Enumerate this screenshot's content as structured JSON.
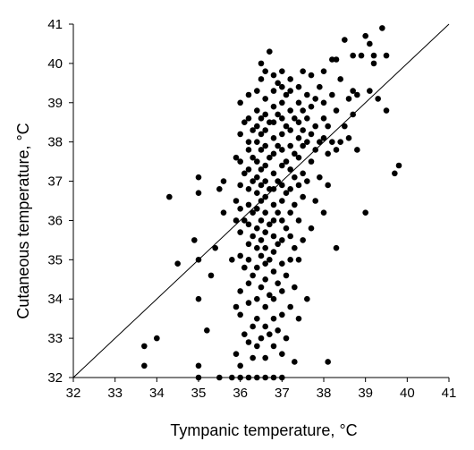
{
  "chart_data": {
    "type": "scatter",
    "title": "",
    "xlabel": "Tympanic temperature, °C",
    "ylabel": "Cutaneous temperature, °C",
    "xlim": [
      32,
      41
    ],
    "ylim": [
      32,
      41
    ],
    "x_ticks": [
      "32",
      "33",
      "34",
      "35",
      "36",
      "37",
      "38",
      "39",
      "40",
      "41"
    ],
    "y_ticks": [
      "32",
      "33",
      "34",
      "35",
      "36",
      "37",
      "38",
      "39",
      "40",
      "41"
    ],
    "grid": false,
    "legend": "none",
    "reference_line": {
      "from": [
        32,
        32
      ],
      "to": [
        41,
        41
      ]
    },
    "marker_color": "#000000",
    "series": [
      {
        "points": [
          [
            33.7,
            32.8
          ],
          [
            33.7,
            32.3
          ],
          [
            34.0,
            33.0
          ],
          [
            34.3,
            36.6
          ],
          [
            34.5,
            34.9
          ],
          [
            35.0,
            32.0
          ],
          [
            35.0,
            32.3
          ],
          [
            35.0,
            34.0
          ],
          [
            35.0,
            35.0
          ],
          [
            35.0,
            37.1
          ],
          [
            35.0,
            36.7
          ],
          [
            34.9,
            35.5
          ],
          [
            35.2,
            33.2
          ],
          [
            35.3,
            34.6
          ],
          [
            35.4,
            35.3
          ],
          [
            35.5,
            36.8
          ],
          [
            35.5,
            32.0
          ],
          [
            35.6,
            36.2
          ],
          [
            35.6,
            37.0
          ],
          [
            35.8,
            32.0
          ],
          [
            35.8,
            35.0
          ],
          [
            35.9,
            36.0
          ],
          [
            35.9,
            36.5
          ],
          [
            35.9,
            37.6
          ],
          [
            35.9,
            33.8
          ],
          [
            35.9,
            32.6
          ],
          [
            36.0,
            32.0
          ],
          [
            36.0,
            32.3
          ],
          [
            36.0,
            33.6
          ],
          [
            36.0,
            34.2
          ],
          [
            36.0,
            35.1
          ],
          [
            36.0,
            35.7
          ],
          [
            36.0,
            36.3
          ],
          [
            36.0,
            36.9
          ],
          [
            36.0,
            37.5
          ],
          [
            36.0,
            38.2
          ],
          [
            36.0,
            39.0
          ],
          [
            36.1,
            34.8
          ],
          [
            36.1,
            36.0
          ],
          [
            36.1,
            37.2
          ],
          [
            36.1,
            38.5
          ],
          [
            36.1,
            33.1
          ],
          [
            36.2,
            32.0
          ],
          [
            36.2,
            32.9
          ],
          [
            36.2,
            33.9
          ],
          [
            36.2,
            34.4
          ],
          [
            36.2,
            35.0
          ],
          [
            36.2,
            35.4
          ],
          [
            36.2,
            35.9
          ],
          [
            36.2,
            36.4
          ],
          [
            36.2,
            36.8
          ],
          [
            36.2,
            37.3
          ],
          [
            36.2,
            37.8
          ],
          [
            36.2,
            38.0
          ],
          [
            36.2,
            38.6
          ],
          [
            36.2,
            39.2
          ],
          [
            36.3,
            33.3
          ],
          [
            36.3,
            34.6
          ],
          [
            36.3,
            35.6
          ],
          [
            36.3,
            36.2
          ],
          [
            36.3,
            37.0
          ],
          [
            36.3,
            37.6
          ],
          [
            36.3,
            38.3
          ],
          [
            36.3,
            32.5
          ],
          [
            36.4,
            32.0
          ],
          [
            36.4,
            32.8
          ],
          [
            36.4,
            33.5
          ],
          [
            36.4,
            34.0
          ],
          [
            36.4,
            34.8
          ],
          [
            36.4,
            35.3
          ],
          [
            36.4,
            35.8
          ],
          [
            36.4,
            36.3
          ],
          [
            36.4,
            36.7
          ],
          [
            36.4,
            37.1
          ],
          [
            36.4,
            37.5
          ],
          [
            36.4,
            38.0
          ],
          [
            36.4,
            38.4
          ],
          [
            36.4,
            38.8
          ],
          [
            36.4,
            39.3
          ],
          [
            36.5,
            33.0
          ],
          [
            36.5,
            34.3
          ],
          [
            36.5,
            35.1
          ],
          [
            36.5,
            35.5
          ],
          [
            36.5,
            36.0
          ],
          [
            36.5,
            36.5
          ],
          [
            36.5,
            36.9
          ],
          [
            36.5,
            37.3
          ],
          [
            36.5,
            37.8
          ],
          [
            36.5,
            38.2
          ],
          [
            36.5,
            38.6
          ],
          [
            36.5,
            39.6
          ],
          [
            36.5,
            40.0
          ],
          [
            36.6,
            32.0
          ],
          [
            36.6,
            32.5
          ],
          [
            36.6,
            33.3
          ],
          [
            36.6,
            33.8
          ],
          [
            36.6,
            34.5
          ],
          [
            36.6,
            34.9
          ],
          [
            36.6,
            35.3
          ],
          [
            36.6,
            35.7
          ],
          [
            36.6,
            36.2
          ],
          [
            36.6,
            36.6
          ],
          [
            36.6,
            37.0
          ],
          [
            36.6,
            37.4
          ],
          [
            36.6,
            37.9
          ],
          [
            36.6,
            38.3
          ],
          [
            36.6,
            38.7
          ],
          [
            36.6,
            39.1
          ],
          [
            36.6,
            39.8
          ],
          [
            36.7,
            33.1
          ],
          [
            36.7,
            34.1
          ],
          [
            36.7,
            35.0
          ],
          [
            36.7,
            35.9
          ],
          [
            36.7,
            36.8
          ],
          [
            36.7,
            37.6
          ],
          [
            36.7,
            38.5
          ],
          [
            36.7,
            40.3
          ],
          [
            36.8,
            32.0
          ],
          [
            36.8,
            32.8
          ],
          [
            36.8,
            33.5
          ],
          [
            36.8,
            34.0
          ],
          [
            36.8,
            34.7
          ],
          [
            36.8,
            35.2
          ],
          [
            36.8,
            35.6
          ],
          [
            36.8,
            36.0
          ],
          [
            36.8,
            36.4
          ],
          [
            36.8,
            36.8
          ],
          [
            36.8,
            37.2
          ],
          [
            36.8,
            37.7
          ],
          [
            36.8,
            38.1
          ],
          [
            36.8,
            38.5
          ],
          [
            36.8,
            38.9
          ],
          [
            36.8,
            39.3
          ],
          [
            36.8,
            39.7
          ],
          [
            36.9,
            33.2
          ],
          [
            36.9,
            34.4
          ],
          [
            36.9,
            35.4
          ],
          [
            36.9,
            36.2
          ],
          [
            36.9,
            37.0
          ],
          [
            36.9,
            37.9
          ],
          [
            36.9,
            38.7
          ],
          [
            36.9,
            39.5
          ],
          [
            37.0,
            32.0
          ],
          [
            37.0,
            32.6
          ],
          [
            37.0,
            33.6
          ],
          [
            37.0,
            34.2
          ],
          [
            37.0,
            34.9
          ],
          [
            37.0,
            35.5
          ],
          [
            37.0,
            36.0
          ],
          [
            37.0,
            36.5
          ],
          [
            37.0,
            36.9
          ],
          [
            37.0,
            37.4
          ],
          [
            37.0,
            37.8
          ],
          [
            37.0,
            38.2
          ],
          [
            37.0,
            38.6
          ],
          [
            37.0,
            39.0
          ],
          [
            37.0,
            39.4
          ],
          [
            37.0,
            39.8
          ],
          [
            37.1,
            33.0
          ],
          [
            37.1,
            34.6
          ],
          [
            37.1,
            35.8
          ],
          [
            37.1,
            36.7
          ],
          [
            37.1,
            37.5
          ],
          [
            37.1,
            38.4
          ],
          [
            37.1,
            39.2
          ],
          [
            37.2,
            33.8
          ],
          [
            37.2,
            35.0
          ],
          [
            37.2,
            35.6
          ],
          [
            37.2,
            36.2
          ],
          [
            37.2,
            36.8
          ],
          [
            37.2,
            37.3
          ],
          [
            37.2,
            37.9
          ],
          [
            37.2,
            38.3
          ],
          [
            37.2,
            38.8
          ],
          [
            37.2,
            39.3
          ],
          [
            37.2,
            39.6
          ],
          [
            37.3,
            32.4
          ],
          [
            37.3,
            34.3
          ],
          [
            37.3,
            35.3
          ],
          [
            37.3,
            36.4
          ],
          [
            37.3,
            37.1
          ],
          [
            37.3,
            37.7
          ],
          [
            37.3,
            38.6
          ],
          [
            37.4,
            33.5
          ],
          [
            37.4,
            35.0
          ],
          [
            37.4,
            36.0
          ],
          [
            37.4,
            36.9
          ],
          [
            37.4,
            37.6
          ],
          [
            37.4,
            38.1
          ],
          [
            37.4,
            38.5
          ],
          [
            37.4,
            39.0
          ],
          [
            37.4,
            39.4
          ],
          [
            37.5,
            35.5
          ],
          [
            37.5,
            36.6
          ],
          [
            37.5,
            37.2
          ],
          [
            37.5,
            37.9
          ],
          [
            37.5,
            38.3
          ],
          [
            37.5,
            38.8
          ],
          [
            37.5,
            39.8
          ],
          [
            37.6,
            34.0
          ],
          [
            37.6,
            37.0
          ],
          [
            37.6,
            38.0
          ],
          [
            37.6,
            38.6
          ],
          [
            37.6,
            39.2
          ],
          [
            37.7,
            35.8
          ],
          [
            37.7,
            37.5
          ],
          [
            37.7,
            38.2
          ],
          [
            37.7,
            38.9
          ],
          [
            37.7,
            39.7
          ],
          [
            37.8,
            36.5
          ],
          [
            37.8,
            37.8
          ],
          [
            37.8,
            38.4
          ],
          [
            37.8,
            39.1
          ],
          [
            37.9,
            37.1
          ],
          [
            37.9,
            38.0
          ],
          [
            37.9,
            39.4
          ],
          [
            38.0,
            36.2
          ],
          [
            38.0,
            38.1
          ],
          [
            38.0,
            38.6
          ],
          [
            38.0,
            39.0
          ],
          [
            38.0,
            39.8
          ],
          [
            38.1,
            32.4
          ],
          [
            38.1,
            36.9
          ],
          [
            38.1,
            37.7
          ],
          [
            38.1,
            38.4
          ],
          [
            38.2,
            38.0
          ],
          [
            38.2,
            39.2
          ],
          [
            38.2,
            40.1
          ],
          [
            38.3,
            35.3
          ],
          [
            38.3,
            37.8
          ],
          [
            38.3,
            38.8
          ],
          [
            38.3,
            40.1
          ],
          [
            38.4,
            38.0
          ],
          [
            38.4,
            39.6
          ],
          [
            38.5,
            38.4
          ],
          [
            38.5,
            40.6
          ],
          [
            38.6,
            38.1
          ],
          [
            38.6,
            39.1
          ],
          [
            38.7,
            38.7
          ],
          [
            38.7,
            39.3
          ],
          [
            38.7,
            40.2
          ],
          [
            38.8,
            37.8
          ],
          [
            38.8,
            39.2
          ],
          [
            38.9,
            40.2
          ],
          [
            39.0,
            40.7
          ],
          [
            39.0,
            36.2
          ],
          [
            39.1,
            40.5
          ],
          [
            39.1,
            39.3
          ],
          [
            39.2,
            40.2
          ],
          [
            39.2,
            40.0
          ],
          [
            39.3,
            39.1
          ],
          [
            39.4,
            40.9
          ],
          [
            39.5,
            38.8
          ],
          [
            39.5,
            40.2
          ],
          [
            39.7,
            37.2
          ],
          [
            39.8,
            37.4
          ]
        ]
      }
    ]
  }
}
